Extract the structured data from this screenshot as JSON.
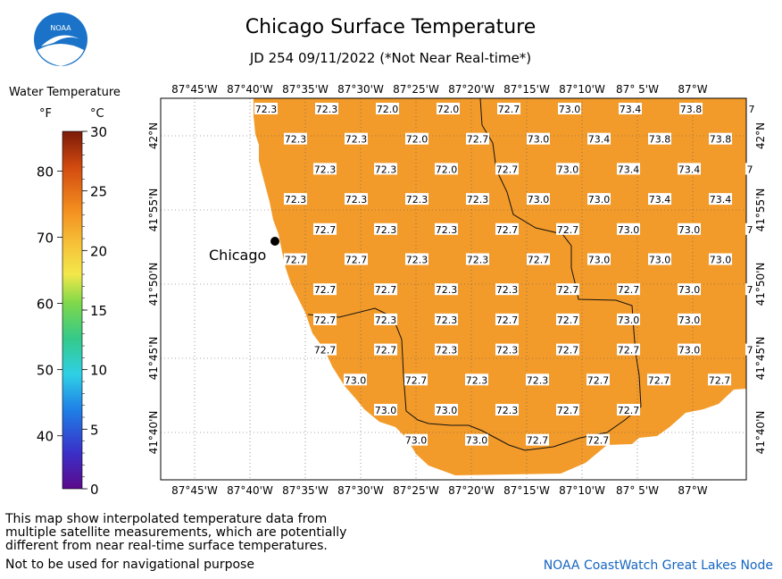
{
  "title": "Chicago Surface Temperature",
  "subtitle": "JD 254 09/11/2022 (*Not Near Real-time*)",
  "logo_text": "NOAA",
  "legend": {
    "label": "Water Temperature",
    "unit_f": "°F",
    "unit_c": "°C",
    "f_ticks": [
      40,
      50,
      60,
      70,
      80
    ],
    "c_ticks": [
      0,
      5,
      10,
      15,
      20,
      25,
      30
    ],
    "c_min": 0,
    "c_max": 30
  },
  "map": {
    "lon_ticks_top": [
      "87°45'W",
      "87°40'W",
      "87°35'W",
      "87°30'W",
      "87°25'W",
      "87°20'W",
      "87°15'W",
      "87°10'W",
      "87° 5'W",
      "87°W"
    ],
    "lon_ticks_bottom": [
      "87°45'W",
      "87°40'W",
      "87°35'W",
      "87°30'W",
      "87°25'W",
      "87°20'W",
      "87°15'W",
      "87°10'W",
      "87° 5'W",
      "87°W"
    ],
    "lat_ticks": [
      "42°N",
      "41°55'N",
      "41°50'N",
      "41°45'N",
      "41°40'N"
    ],
    "city_label": "Chicago",
    "water_color": "#f39b2a",
    "label_rows": [
      [
        "72.3",
        "72.3",
        "72.0",
        "72.0",
        "72.7",
        "73.0",
        "73.4",
        "73.8",
        "7"
      ],
      [
        "72.3",
        "72.3",
        "72.0",
        "72.7",
        "73.0",
        "73.4",
        "73.8",
        "73.8"
      ],
      [
        "72.3",
        "72.3",
        "72.0",
        "72.7",
        "73.0",
        "73.4",
        "73.4",
        "7"
      ],
      [
        "72.3",
        "72.3",
        "72.3",
        "72.3",
        "73.0",
        "73.0",
        "73.4",
        "73.4"
      ],
      [
        "72.7",
        "72.3",
        "72.3",
        "72.7",
        "72.7",
        "73.0",
        "73.0",
        "7"
      ],
      [
        "72.7",
        "72.7",
        "72.3",
        "72.3",
        "72.7",
        "73.0",
        "73.0",
        "73.0"
      ],
      [
        "72.7",
        "72.7",
        "72.3",
        "72.3",
        "72.7",
        "72.7",
        "73.0",
        "7"
      ],
      [
        "72.7",
        "72.3",
        "72.3",
        "72.7",
        "72.7",
        "73.0",
        "73.0"
      ],
      [
        "72.7",
        "72.7",
        "72.3",
        "72.3",
        "72.7",
        "72.7",
        "73.0",
        "7"
      ],
      [
        "73.0",
        "72.7",
        "72.3",
        "72.3",
        "72.7",
        "72.7",
        "72.7"
      ],
      [
        "73.0",
        "73.0",
        "72.3",
        "72.7",
        "72.7"
      ],
      [
        "73.0",
        "73.0",
        "72.7",
        "72.7"
      ]
    ]
  },
  "notes": {
    "disclaimer": "This map show interpolated temperature data from\nmultiple satellite measurements, which are potentially\ndifferent from near real-time surface temperatures.",
    "navigation": "Not to be used for navigational purpose",
    "credit": "NOAA CoastWatch Great Lakes Node"
  }
}
